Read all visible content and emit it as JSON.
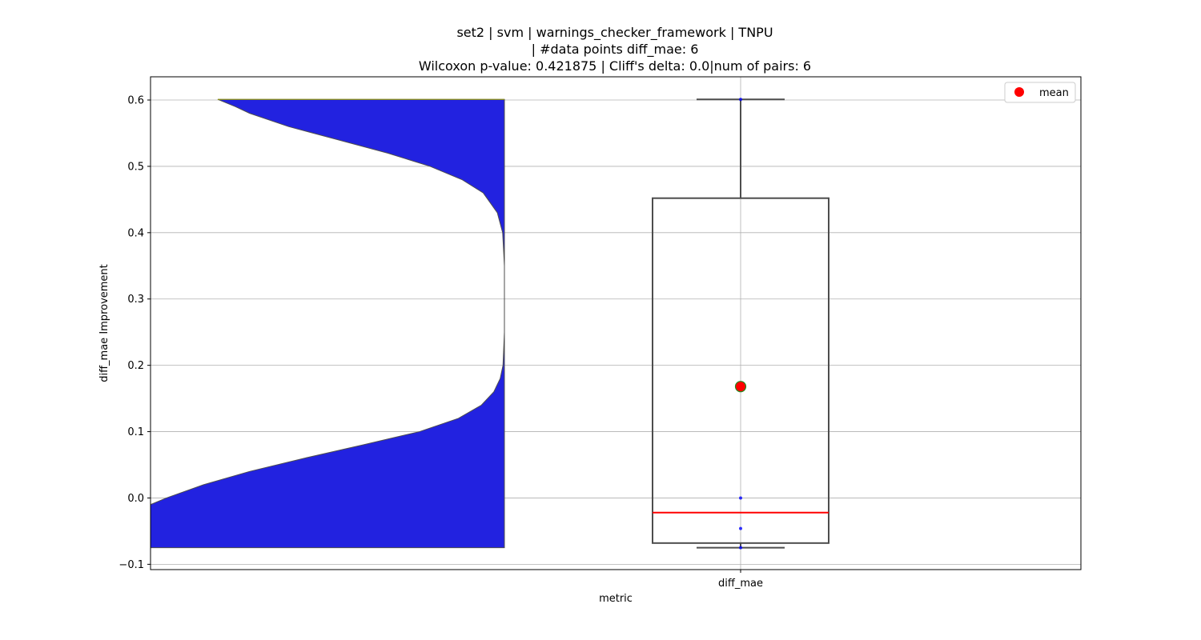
{
  "chart_data": {
    "type": "violin+box",
    "title_lines": [
      "set2 | svm | warnings_checker_framework | TNPU",
      "| #data points diff_mae: 6",
      "Wilcoxon p-value: 0.421875 | Cliff's delta: 0.0|num of pairs: 6"
    ],
    "xlabel": "metric",
    "ylabel": "diff_mae Improvement",
    "categories": [
      "diff_mae"
    ],
    "ylim": [
      -0.108,
      0.635
    ],
    "yticks": [
      -0.1,
      0.0,
      0.1,
      0.2,
      0.3,
      0.4,
      0.5,
      0.6
    ],
    "ytick_labels": [
      "−0.1",
      "0.0",
      "0.1",
      "0.2",
      "0.3",
      "0.4",
      "0.5",
      "0.6"
    ],
    "grid": true,
    "legend": {
      "placement": "top-right",
      "entries": [
        {
          "label": "mean",
          "color": "#ff0000"
        }
      ]
    },
    "violin": {
      "side": "left",
      "color": "#2222e0",
      "range": [
        -0.075,
        0.601
      ],
      "half_width_profile": [
        {
          "y": -0.075,
          "w": 1.0
        },
        {
          "y": -0.01,
          "w": 1.0
        },
        {
          "y": 0.0,
          "w": 0.955
        },
        {
          "y": 0.02,
          "w": 0.85
        },
        {
          "y": 0.04,
          "w": 0.72
        },
        {
          "y": 0.06,
          "w": 0.565
        },
        {
          "y": 0.08,
          "w": 0.4
        },
        {
          "y": 0.1,
          "w": 0.24
        },
        {
          "y": 0.12,
          "w": 0.13
        },
        {
          "y": 0.14,
          "w": 0.065
        },
        {
          "y": 0.16,
          "w": 0.03
        },
        {
          "y": 0.18,
          "w": 0.012
        },
        {
          "y": 0.2,
          "w": 0.004
        },
        {
          "y": 0.25,
          "w": 0.0
        },
        {
          "y": 0.35,
          "w": 0.0
        },
        {
          "y": 0.4,
          "w": 0.005
        },
        {
          "y": 0.43,
          "w": 0.02
        },
        {
          "y": 0.46,
          "w": 0.06
        },
        {
          "y": 0.48,
          "w": 0.12
        },
        {
          "y": 0.5,
          "w": 0.21
        },
        {
          "y": 0.52,
          "w": 0.33
        },
        {
          "y": 0.54,
          "w": 0.47
        },
        {
          "y": 0.56,
          "w": 0.61
        },
        {
          "y": 0.58,
          "w": 0.72
        },
        {
          "y": 0.59,
          "w": 0.76
        },
        {
          "y": 0.601,
          "w": 0.81
        }
      ]
    },
    "box": {
      "whisker_low": -0.075,
      "q1": -0.068,
      "median": -0.022,
      "q3": 0.452,
      "whisker_high": 0.601,
      "mean": 0.168,
      "box_color": "#4d4d4d",
      "median_color": "#ff0000",
      "mean_color": "#ff0000",
      "mean_edge_color": "#228b22"
    },
    "points": [
      -0.075,
      -0.046,
      0.0,
      0.601
    ],
    "points_color": "#0000ff"
  }
}
